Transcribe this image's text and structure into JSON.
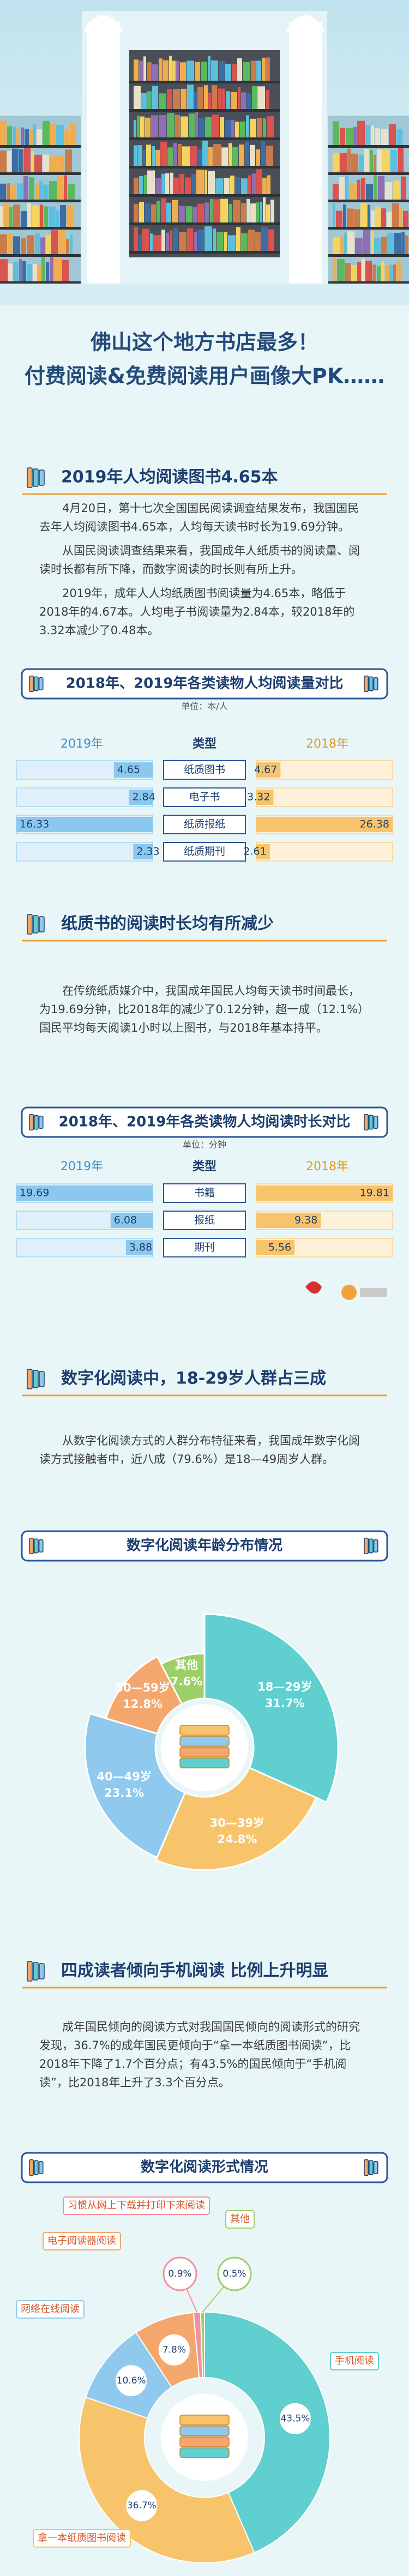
{
  "header": {
    "title_line1": "佛山这个地方书店最多！",
    "title_line2": "付费阅读&免费阅读用户画像大PK……"
  },
  "sections": [
    {
      "heading": "2019年人均阅读图书4.65本",
      "paragraphs": [
        "4月20日，第十七次全国国民阅读调查结果发布，我国国民去年人均阅读图书4.65本，人均每天读书时长为19.69分钟。",
        "从国民阅读调查结果来看，我国成年人纸质书的阅读量、阅读时长都有所下降，而数字阅读的时长则有所上升。",
        "2019年，成年人人均纸质图书阅读量为4.65本，略低于2018年的4.67本。人均电子书阅读量为2.84本，较2018年的3.32本减少了0.48本。"
      ]
    },
    {
      "heading": "纸质书的阅读时长均有所减少",
      "paragraphs": [
        "在传统纸质媒介中，我国成年国民人均每天读书时间最长，为19.69分钟，比2018年的减少了0.12分钟，超一成（12.1%）国民平均每天阅读1小时以上图书，与2018年基本持平。"
      ]
    },
    {
      "heading": "数字化阅读中，18-29岁人群占三成",
      "paragraphs": [
        "从数字化阅读方式的人群分布特征来看，我国成年数字化阅读方式接触者中，近八成（79.6%）是18—49周岁人群。"
      ]
    },
    {
      "heading": "四成读者倾向手机阅读 比例上升明显",
      "paragraphs": [
        "成年国民倾向的阅读方式对我国国民倾向的阅读形式的研究发现，36.7%的成年国民更倾向于“拿一本纸质图书阅读”，比2018年下降了1.7个百分点；有43.5%的国民倾向于“手机阅读”，比2018年上升了3.3个百分点。"
      ]
    }
  ],
  "chart_data": [
    {
      "type": "bar",
      "title": "2018年、2019年各类读物人均阅读量对比",
      "subtitle": "单位：本/人",
      "category_header": "类型",
      "categories": [
        "纸质图书",
        "电子书",
        "纸质报纸",
        "纸质期刊"
      ],
      "series": [
        {
          "name": "2019年",
          "color": "#8cc8ee",
          "values": [
            4.65,
            2.84,
            16.33,
            2.33
          ]
        },
        {
          "name": "2018年",
          "color": "#f7c46c",
          "values": [
            4.67,
            3.32,
            26.38,
            2.61
          ]
        }
      ]
    },
    {
      "type": "bar",
      "title": "2018年、2019年各类读物人均阅读时长对比",
      "subtitle": "单位：分钟",
      "category_header": "类型",
      "categories": [
        "书籍",
        "报纸",
        "期刊"
      ],
      "series": [
        {
          "name": "2019年",
          "color": "#8cc8ee",
          "values": [
            19.69,
            6.08,
            3.88
          ]
        },
        {
          "name": "2018年",
          "color": "#f7c46c",
          "values": [
            19.81,
            9.38,
            5.56
          ]
        }
      ]
    },
    {
      "type": "rose",
      "title": "数字化阅读年龄分布情况",
      "categories": [
        "18—29岁",
        "30—39岁",
        "40—49岁",
        "50—59岁",
        "其他"
      ],
      "values": [
        31.7,
        24.8,
        23.1,
        12.8,
        7.6
      ],
      "value_labels": [
        "31.7%",
        "24.8%",
        "23.1%",
        "12.8%",
        "7.6%"
      ],
      "colors": [
        "#5fcfcf",
        "#f7c46c",
        "#8fc9ee",
        "#f4a76d",
        "#9ccf6a"
      ]
    },
    {
      "type": "donut",
      "title": "数字化阅读形式情况",
      "categories": [
        "手机阅读",
        "拿一本纸质图书阅读",
        "网络在线阅读",
        "电子阅读器阅读",
        "习惯从网上下载并打印下来阅读",
        "其他"
      ],
      "values": [
        43.5,
        36.7,
        10.6,
        7.8,
        0.9,
        0.5
      ],
      "value_labels": [
        "43.5%",
        "36.7%",
        "10.6%",
        "7.8%",
        "0.9%",
        "0.5%"
      ],
      "colors": [
        "#5fcfcf",
        "#f7c46c",
        "#8fc9ee",
        "#f4a76d",
        "#f58fa0",
        "#9ccf6a"
      ]
    }
  ]
}
